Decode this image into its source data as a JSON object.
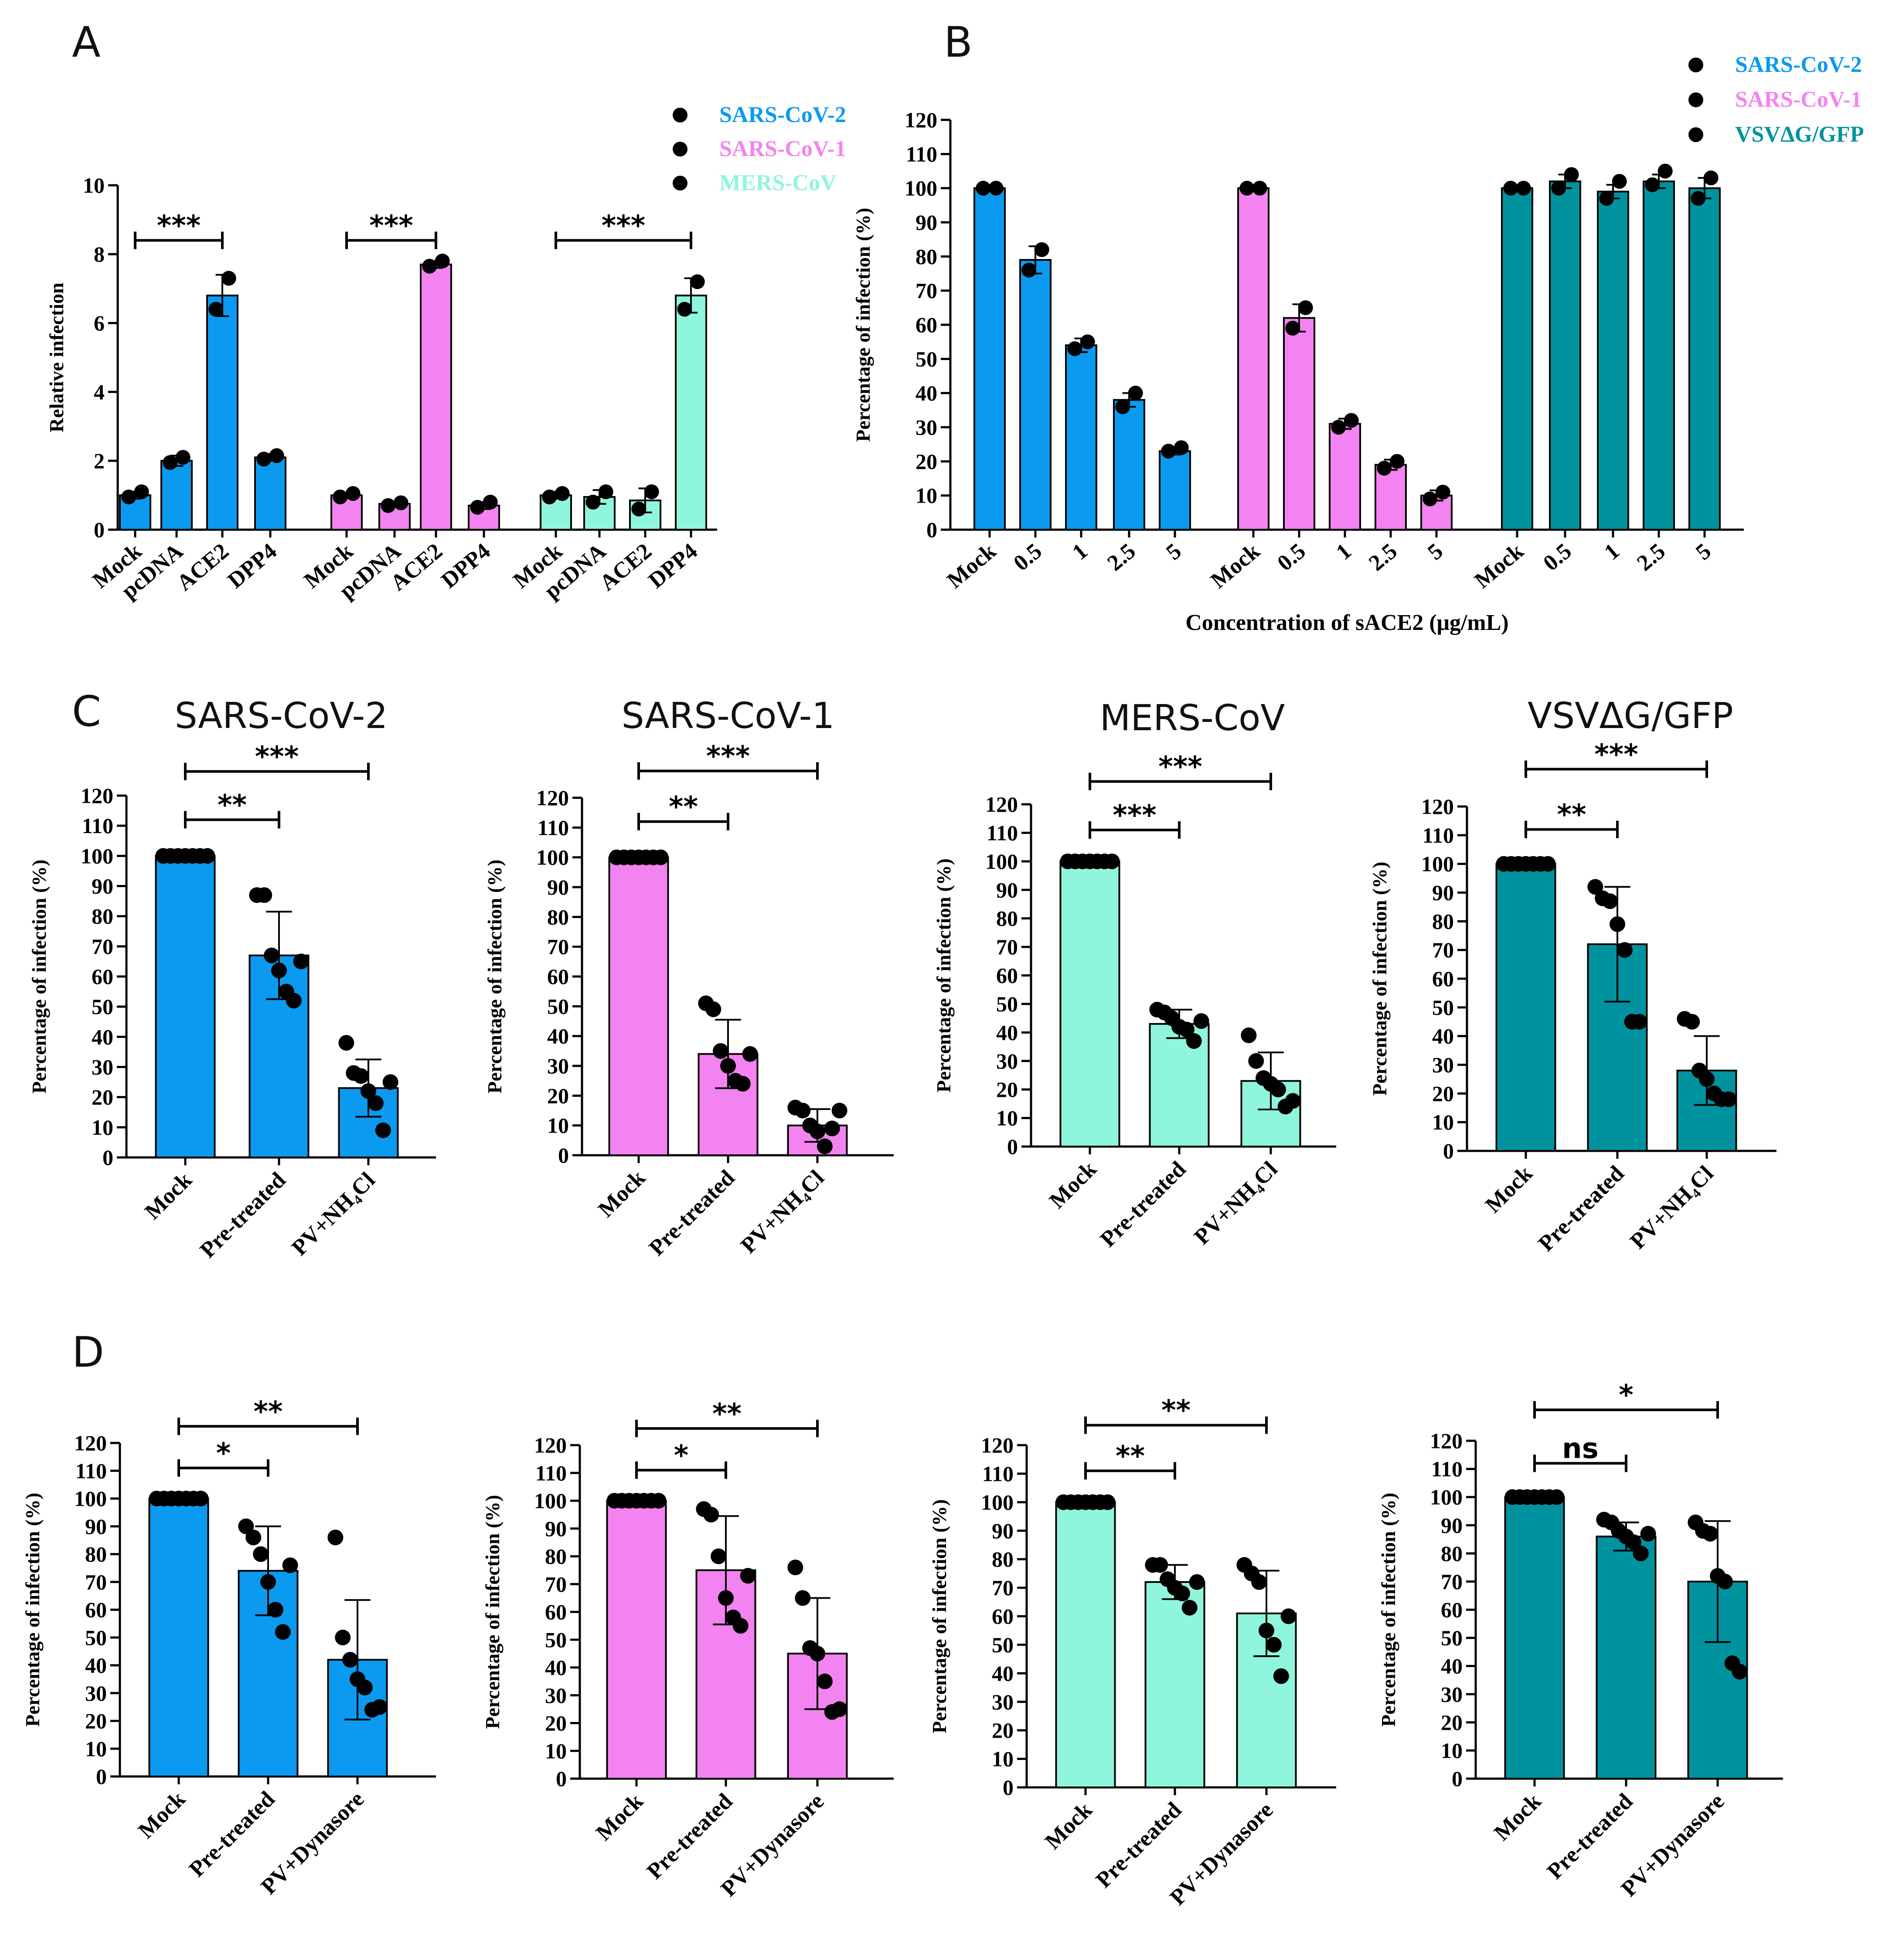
{
  "colors": {
    "SARS-CoV-2": "#0b9aef",
    "SARS-CoV-1": "#f383f0",
    "MERS-CoV": "#8ff5dc",
    "VSV": "#00939f"
  },
  "chart_data": [
    {
      "id": "A",
      "panel": "A",
      "type": "bar",
      "ylabel": "Relative infection",
      "ylim": [
        0,
        10
      ],
      "yticks": [
        0,
        2,
        4,
        6,
        8,
        10
      ],
      "legend": [
        "SARS-CoV-2",
        "SARS-CoV-1",
        "MERS-CoV"
      ],
      "groups": [
        {
          "series": "SARS-CoV-2",
          "categories": [
            "Mock",
            "pcDNA",
            "ACE2",
            "DPP4"
          ],
          "values": [
            1.0,
            2.0,
            6.8,
            2.1
          ],
          "err": [
            0.1,
            0.15,
            0.6,
            0.1
          ],
          "points": [
            [
              0.95,
              1.1
            ],
            [
              1.95,
              2.1
            ],
            [
              6.4,
              7.3
            ],
            [
              2.05,
              2.15
            ]
          ],
          "sig": [
            {
              "from": 0,
              "to": 2,
              "label": "***",
              "y": 8.4
            }
          ]
        },
        {
          "series": "SARS-CoV-1",
          "categories": [
            "Mock",
            "pcDNA",
            "ACE2",
            "DPP4"
          ],
          "values": [
            1.0,
            0.75,
            7.7,
            0.7
          ],
          "err": [
            0.08,
            0.05,
            0.1,
            0.1
          ],
          "points": [
            [
              0.95,
              1.05
            ],
            [
              0.7,
              0.78
            ],
            [
              7.65,
              7.8
            ],
            [
              0.65,
              0.8
            ]
          ],
          "sig": [
            {
              "from": 0,
              "to": 2,
              "label": "***",
              "y": 8.4
            }
          ]
        },
        {
          "series": "MERS-CoV",
          "categories": [
            "Mock",
            "pcDNA",
            "ACE2",
            "DPP4"
          ],
          "values": [
            1.0,
            0.95,
            0.85,
            6.8
          ],
          "err": [
            0.1,
            0.2,
            0.35,
            0.5
          ],
          "points": [
            [
              0.95,
              1.05
            ],
            [
              0.8,
              1.1
            ],
            [
              0.6,
              1.1
            ],
            [
              6.4,
              7.2
            ]
          ],
          "sig": [
            {
              "from": 0,
              "to": 3,
              "label": "***",
              "y": 8.4
            }
          ]
        }
      ]
    },
    {
      "id": "B",
      "panel": "B",
      "type": "bar",
      "ylabel": "Percentage of infection (%)",
      "xlabel": "Concentration of sACE2 (μg/mL)",
      "ylim": [
        0,
        120
      ],
      "yticks": [
        0,
        10,
        20,
        30,
        40,
        50,
        60,
        70,
        80,
        90,
        100,
        110,
        120
      ],
      "legend": [
        "SARS-CoV-2",
        "SARS-CoV-1",
        "VSVΔG/GFP"
      ],
      "groups": [
        {
          "series": "SARS-CoV-2",
          "categories": [
            "Mock",
            "0.5",
            "1",
            "2.5",
            "5"
          ],
          "values": [
            100,
            79,
            54,
            38,
            23
          ],
          "err": [
            0,
            4,
            2,
            2,
            1
          ],
          "points": [
            [
              100,
              100
            ],
            [
              76,
              82
            ],
            [
              53,
              55
            ],
            [
              36,
              40
            ],
            [
              23,
              24
            ]
          ]
        },
        {
          "series": "SARS-CoV-1",
          "categories": [
            "Mock",
            "0.5",
            "1",
            "2.5",
            "5"
          ],
          "values": [
            100,
            62,
            31,
            19,
            10
          ],
          "err": [
            0,
            4,
            1.5,
            1.5,
            1.5
          ],
          "points": [
            [
              100,
              100
            ],
            [
              59,
              65
            ],
            [
              30,
              32
            ],
            [
              18,
              20
            ],
            [
              9,
              11
            ]
          ]
        },
        {
          "series": "VSV",
          "categories": [
            "Mock",
            "0.5",
            "1",
            "2.5",
            "5"
          ],
          "values": [
            100,
            102,
            99,
            102,
            100
          ],
          "err": [
            0,
            2,
            2,
            2,
            3
          ],
          "points": [
            [
              100,
              100
            ],
            [
              100,
              104
            ],
            [
              97,
              102
            ],
            [
              101,
              105
            ],
            [
              97,
              103
            ]
          ]
        }
      ]
    },
    {
      "id": "C1",
      "panel": "C",
      "type": "bar",
      "title": "SARS-CoV-2",
      "series": "SARS-CoV-2",
      "ylabel": "Percentage of infection (%)",
      "ylim": [
        0,
        120
      ],
      "yticks": [
        0,
        10,
        20,
        30,
        40,
        50,
        60,
        70,
        80,
        90,
        100,
        110,
        120
      ],
      "categories": [
        "Mock",
        "Pre-treated",
        "PV+NH₄Cl"
      ],
      "values": [
        100,
        67,
        23
      ],
      "err": [
        0,
        14.5,
        9.5
      ],
      "points": [
        [
          100,
          100,
          100,
          100,
          100,
          100,
          100
        ],
        [
          87,
          87,
          67,
          62,
          55,
          52,
          65
        ],
        [
          38,
          28,
          27,
          22,
          18,
          9,
          25
        ]
      ],
      "sig": [
        {
          "from": 0,
          "to": 1,
          "label": "**",
          "y": 112
        },
        {
          "from": 0,
          "to": 2,
          "label": "***",
          "y": 128
        }
      ]
    },
    {
      "id": "C2",
      "panel": "C",
      "type": "bar",
      "title": "SARS-CoV-1",
      "series": "SARS-CoV-1",
      "ylabel": "Percentage of infection (%)",
      "ylim": [
        0,
        120
      ],
      "yticks": [
        0,
        10,
        20,
        30,
        40,
        50,
        60,
        70,
        80,
        90,
        100,
        110,
        120
      ],
      "categories": [
        "Mock",
        "Pre-treated",
        "PV+NH₄Cl"
      ],
      "values": [
        100,
        34,
        10
      ],
      "err": [
        0,
        11.5,
        5.5
      ],
      "points": [
        [
          100,
          100,
          100,
          100,
          100,
          100,
          100
        ],
        [
          51,
          49,
          35,
          30,
          25,
          24,
          34
        ],
        [
          16,
          15,
          10,
          8,
          3,
          9,
          15
        ]
      ],
      "sig": [
        {
          "from": 0,
          "to": 1,
          "label": "**",
          "y": 112
        },
        {
          "from": 0,
          "to": 2,
          "label": "***",
          "y": 129
        }
      ]
    },
    {
      "id": "C3",
      "panel": "C",
      "type": "bar",
      "title": "MERS-CoV",
      "series": "MERS-CoV",
      "ylabel": "Percentage of infection (%)",
      "ylim": [
        0,
        120
      ],
      "yticks": [
        0,
        10,
        20,
        30,
        40,
        50,
        60,
        70,
        80,
        90,
        100,
        110,
        120
      ],
      "categories": [
        "Mock",
        "Pre-treated",
        "PV+NH₄Cl"
      ],
      "values": [
        100,
        43,
        23
      ],
      "err": [
        0,
        5,
        10
      ],
      "points": [
        [
          100,
          100,
          100,
          100,
          100,
          100,
          100
        ],
        [
          48,
          47,
          45,
          42,
          41,
          37,
          44
        ],
        [
          39,
          30,
          24,
          22,
          20,
          14,
          16
        ]
      ],
      "sig": [
        {
          "from": 0,
          "to": 1,
          "label": "***",
          "y": 111
        },
        {
          "from": 0,
          "to": 2,
          "label": "***",
          "y": 128
        }
      ]
    },
    {
      "id": "C4",
      "panel": "C",
      "type": "bar",
      "title": "VSVΔG/GFP",
      "series": "VSV",
      "ylabel": "Percentage of infection (%)",
      "ylim": [
        0,
        120
      ],
      "yticks": [
        0,
        10,
        20,
        30,
        40,
        50,
        60,
        70,
        80,
        90,
        100,
        110,
        120
      ],
      "categories": [
        "Mock",
        "Pre-treated",
        "PV+NH₄Cl"
      ],
      "values": [
        100,
        72,
        28
      ],
      "err": [
        0,
        20,
        12
      ],
      "points": [
        [
          100,
          100,
          100,
          100,
          100,
          100,
          100
        ],
        [
          92,
          88,
          87,
          79,
          70,
          45,
          45
        ],
        [
          46,
          45,
          28,
          25,
          20,
          18,
          18
        ]
      ],
      "sig": [
        {
          "from": 0,
          "to": 1,
          "label": "**",
          "y": 112
        },
        {
          "from": 0,
          "to": 2,
          "label": "***",
          "y": 133
        }
      ]
    },
    {
      "id": "D1",
      "panel": "D",
      "type": "bar",
      "series": "SARS-CoV-2",
      "ylabel": "Percentage of infection (%)",
      "ylim": [
        0,
        120
      ],
      "yticks": [
        0,
        10,
        20,
        30,
        40,
        50,
        60,
        70,
        80,
        90,
        100,
        110,
        120
      ],
      "categories": [
        "Mock",
        "Pre-treated",
        "PV+Dynasore"
      ],
      "values": [
        100,
        74,
        42
      ],
      "err": [
        0,
        16,
        21.5
      ],
      "points": [
        [
          100,
          100,
          100,
          100,
          100,
          100,
          100
        ],
        [
          90,
          86,
          80,
          70,
          60,
          52,
          76
        ],
        [
          86,
          50,
          42,
          35,
          32,
          24,
          25
        ]
      ],
      "sig": [
        {
          "from": 0,
          "to": 1,
          "label": "*",
          "y": 111
        },
        {
          "from": 0,
          "to": 2,
          "label": "**",
          "y": 126
        }
      ]
    },
    {
      "id": "D2",
      "panel": "D",
      "type": "bar",
      "series": "SARS-CoV-1",
      "ylabel": "Percentage of infection (%)",
      "ylim": [
        0,
        120
      ],
      "yticks": [
        0,
        10,
        20,
        30,
        40,
        50,
        60,
        70,
        80,
        90,
        100,
        110,
        120
      ],
      "categories": [
        "Mock",
        "Pre-treated",
        "PV+Dynasore"
      ],
      "values": [
        100,
        75,
        45
      ],
      "err": [
        0,
        19.5,
        20
      ],
      "points": [
        [
          100,
          100,
          100,
          100,
          100,
          100,
          100
        ],
        [
          97,
          95,
          80,
          65,
          58,
          55,
          73
        ],
        [
          76,
          65,
          47,
          45,
          35,
          24,
          25
        ]
      ],
      "sig": [
        {
          "from": 0,
          "to": 1,
          "label": "*",
          "y": 111
        },
        {
          "from": 0,
          "to": 2,
          "label": "**",
          "y": 126
        }
      ]
    },
    {
      "id": "D3",
      "panel": "D",
      "type": "bar",
      "series": "MERS-CoV",
      "ylabel": "Percentage of infection (%)",
      "ylim": [
        0,
        120
      ],
      "yticks": [
        0,
        10,
        20,
        30,
        40,
        50,
        60,
        70,
        80,
        90,
        100,
        110,
        120
      ],
      "categories": [
        "Mock",
        "Pre-treated",
        "PV+Dynasore"
      ],
      "values": [
        100,
        72,
        61
      ],
      "err": [
        0,
        6,
        15
      ],
      "points": [
        [
          100,
          100,
          100,
          100,
          100,
          100,
          100
        ],
        [
          78,
          78,
          73,
          70,
          68,
          63,
          72
        ],
        [
          78,
          75,
          72,
          55,
          50,
          39,
          60
        ]
      ],
      "sig": [
        {
          "from": 0,
          "to": 1,
          "label": "**",
          "y": 111
        },
        {
          "from": 0,
          "to": 2,
          "label": "**",
          "y": 127
        }
      ]
    },
    {
      "id": "D4",
      "panel": "D",
      "type": "bar",
      "series": "VSV",
      "ylabel": "Percentage of infection (%)",
      "ylim": [
        0,
        120
      ],
      "yticks": [
        0,
        10,
        20,
        30,
        40,
        50,
        60,
        70,
        80,
        90,
        100,
        110,
        120
      ],
      "categories": [
        "Mock",
        "Pre-treated",
        "PV+Dynasore"
      ],
      "values": [
        100,
        86,
        70
      ],
      "err": [
        0,
        5,
        21.5
      ],
      "points": [
        [
          100,
          100,
          100,
          100,
          100,
          100,
          100
        ],
        [
          92,
          91,
          88,
          86,
          84,
          80,
          87
        ],
        [
          91,
          88,
          87,
          72,
          70,
          41,
          38
        ]
      ],
      "sig": [
        {
          "from": 0,
          "to": 1,
          "label": "ns",
          "y": 112
        },
        {
          "from": 0,
          "to": 2,
          "label": "*",
          "y": 131
        }
      ]
    }
  ]
}
